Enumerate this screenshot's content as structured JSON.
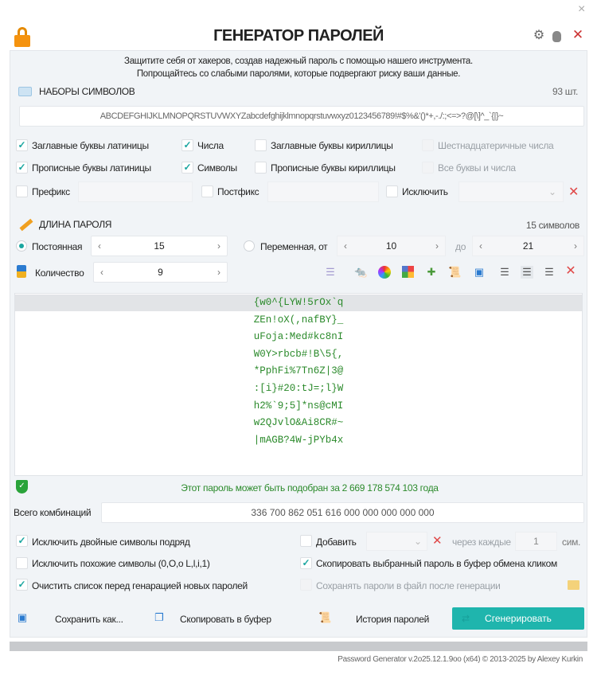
{
  "window": {
    "close": "×"
  },
  "header": {
    "title": "ГЕНЕРАТОР ПАРОЛЕЙ",
    "lines": [
      "Защитите себя от хакеров, создав надежный пароль с помощью нашего инструмента.",
      "Попрощайтесь со слабыми паролями, которые подвергают риску ваши данные."
    ]
  },
  "charsets": {
    "title": "НАБОРЫ СИМВОЛОВ",
    "count": "93 шт.",
    "value": "ABCDEFGHIJKLMNOPQRSTUVWXYZabcdefghijklmnopqrstuvwxyz0123456789!#$%&'()*+,-./:;<=>?@[\\]^_`{|}~",
    "options": [
      {
        "label": "Заглавные буквы латиницы",
        "checked": true
      },
      {
        "label": "Числа",
        "checked": true
      },
      {
        "label": "Заглавные буквы кириллицы",
        "checked": false
      },
      {
        "label": "Шестнадцатеричные числа",
        "checked": false,
        "disabled": true
      },
      {
        "label": "Прописные буквы латиницы",
        "checked": true
      },
      {
        "label": "Символы",
        "checked": true
      },
      {
        "label": "Прописные буквы кириллицы",
        "checked": false
      },
      {
        "label": "Все буквы и числа",
        "checked": false,
        "disabled": true
      }
    ],
    "prefix": "Префикс",
    "postfix": "Постфикс",
    "exclude": "Исключить"
  },
  "length": {
    "title": "ДЛИНА ПАРОЛЯ",
    "summary": "15 символов",
    "constant": "Постоянная",
    "constant_value": "15",
    "variable": "Переменная, от",
    "from": "10",
    "to_label": "до",
    "to": "21",
    "quantity_label": "Количество",
    "quantity": "9"
  },
  "passwords": [
    "{w0^{LYW!5rOx`q",
    "ZEn!oX(,nafBY}_",
    "uFoja:Med#kc8nI",
    "W0Y>rbcb#!B\\5{,",
    "*PphFi%7Tn6Z|3@",
    ":[i}#20:tJ=;l}W",
    "h2%`9;5]*ns@cMI",
    "w2QJvlO&Ai8CR#~",
    "|mAGB?4W-jPYb4x"
  ],
  "strength": "Этот пароль может быть подобран за 2 669 178 574 103 года",
  "combinations": {
    "label": "Всего комбинаций",
    "value": "336 700 862 051 616 000 000 000 000 000"
  },
  "options": {
    "no_doubles": "Исключить двойные символы подряд",
    "no_similar": "Исключить похожие символы (0,O,o L,l,i,1)",
    "clear_list": "Очистить список перед генарацией новых паролей",
    "add": "Добавить",
    "every": "через каждые",
    "every_value": "1",
    "chars": "сим.",
    "copy_click": "Скопировать выбранный пароль в буфер обмена кликом",
    "save_file": "Сохранять пароли в файл  после генерации"
  },
  "buttons": {
    "save": "Сохранить как...",
    "copy": "Скопировать в буфер",
    "history": "История паролей",
    "generate": "Сгенерировать"
  },
  "footer": "Password Generator v.2o25.12.1.9oo (x64) © 2013-2025 by Alexey Kurkin",
  "colors": {
    "accent": "#1fb5ad",
    "password": "#2b8a2b"
  }
}
